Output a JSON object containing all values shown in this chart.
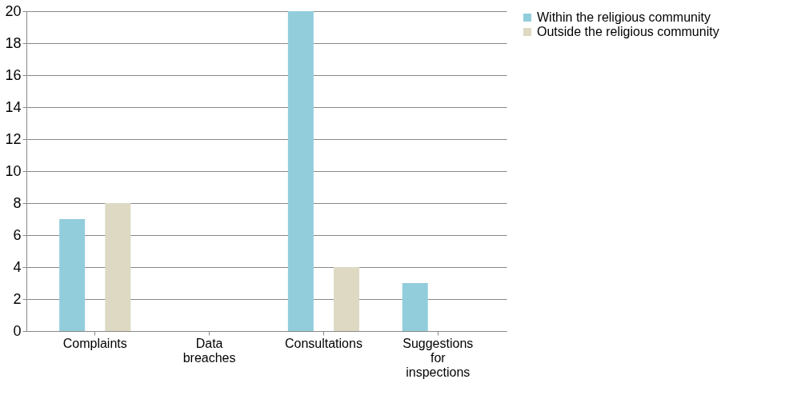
{
  "chart_data": {
    "type": "bar",
    "categories": [
      "Complaints",
      "Data breaches",
      "Consultations",
      "Suggestions for inspections"
    ],
    "series": [
      {
        "name": "Within the religious community",
        "color": "#92cddc",
        "values": [
          7,
          0,
          20,
          3
        ]
      },
      {
        "name": "Outside the religious community",
        "color": "#ddd9c3",
        "values": [
          8,
          0,
          4,
          0
        ]
      }
    ],
    "ylim": [
      0,
      20
    ],
    "yticks": [
      0,
      2,
      4,
      6,
      8,
      10,
      12,
      14,
      16,
      18,
      20
    ],
    "grid": "y",
    "legend": "right"
  }
}
